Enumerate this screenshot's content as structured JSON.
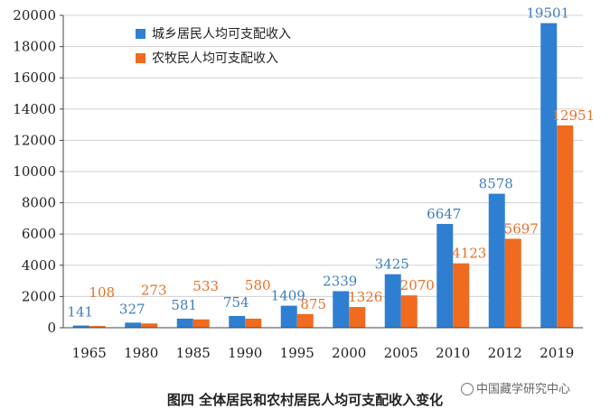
{
  "chart_data": {
    "type": "bar",
    "categories": [
      "1965",
      "1980",
      "1985",
      "1990",
      "1995",
      "2000",
      "2005",
      "2010",
      "2012",
      "2019"
    ],
    "series": [
      {
        "name": "城乡居民人均可支配收入",
        "color": "#2e7fd1",
        "values": [
          141,
          327,
          581,
          754,
          1409,
          2339,
          3425,
          6647,
          8578,
          19501
        ]
      },
      {
        "name": "农牧民人均可支配收入",
        "color": "#f06a1f",
        "values": [
          108,
          273,
          533,
          580,
          875,
          1326,
          2070,
          4123,
          5697,
          12951
        ]
      }
    ],
    "ylim": [
      0,
      20000
    ],
    "yticks": [
      "0",
      "2000",
      "4000",
      "6000",
      "8000",
      "10000",
      "12000",
      "14000",
      "16000",
      "18000",
      "20000"
    ],
    "grid": true,
    "legend": "top-left"
  },
  "caption": "图四 全体居民和农村居民人均可支配收入变化",
  "watermark": "中国藏学研究中心"
}
